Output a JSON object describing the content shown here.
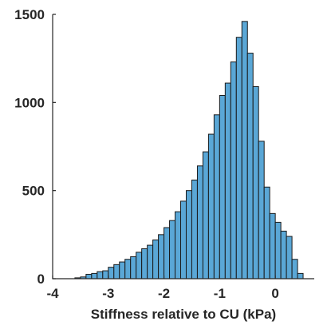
{
  "chart_data": {
    "type": "bar",
    "subtype": "histogram",
    "title": "",
    "xlabel": "Stiffness relative to CU (kPa)",
    "ylabel": "",
    "xlim": [
      -4,
      0.7
    ],
    "ylim": [
      0,
      1500
    ],
    "xticks": [
      -4,
      -3,
      -2,
      -1,
      0
    ],
    "yticks": [
      0,
      500,
      1000,
      1500
    ],
    "xtick_labels": [
      "-4",
      "-3",
      "-2",
      "-1",
      "0"
    ],
    "ytick_labels": [
      "0",
      "500",
      "1000",
      "1500"
    ],
    "grid": false,
    "bar_color": "#5aa7d6",
    "edge_color": "#1a1a1a",
    "bin_width": 0.1,
    "bin_centers": [
      -3.55,
      -3.45,
      -3.35,
      -3.25,
      -3.15,
      -3.05,
      -2.95,
      -2.85,
      -2.75,
      -2.65,
      -2.55,
      -2.45,
      -2.35,
      -2.25,
      -2.15,
      -2.05,
      -1.95,
      -1.85,
      -1.75,
      -1.65,
      -1.55,
      -1.45,
      -1.35,
      -1.25,
      -1.15,
      -1.05,
      -0.95,
      -0.85,
      -0.75,
      -0.65,
      -0.55,
      -0.45,
      -0.35,
      -0.25,
      -0.15,
      -0.05,
      0.05,
      0.15,
      0.25,
      0.35,
      0.45
    ],
    "values": [
      5,
      10,
      25,
      30,
      40,
      45,
      65,
      80,
      95,
      110,
      125,
      150,
      170,
      190,
      220,
      250,
      290,
      330,
      380,
      440,
      500,
      560,
      640,
      720,
      820,
      930,
      1040,
      1110,
      1230,
      1370,
      1460,
      1280,
      1090,
      780,
      520,
      370,
      320,
      270,
      240,
      110,
      30
    ]
  }
}
